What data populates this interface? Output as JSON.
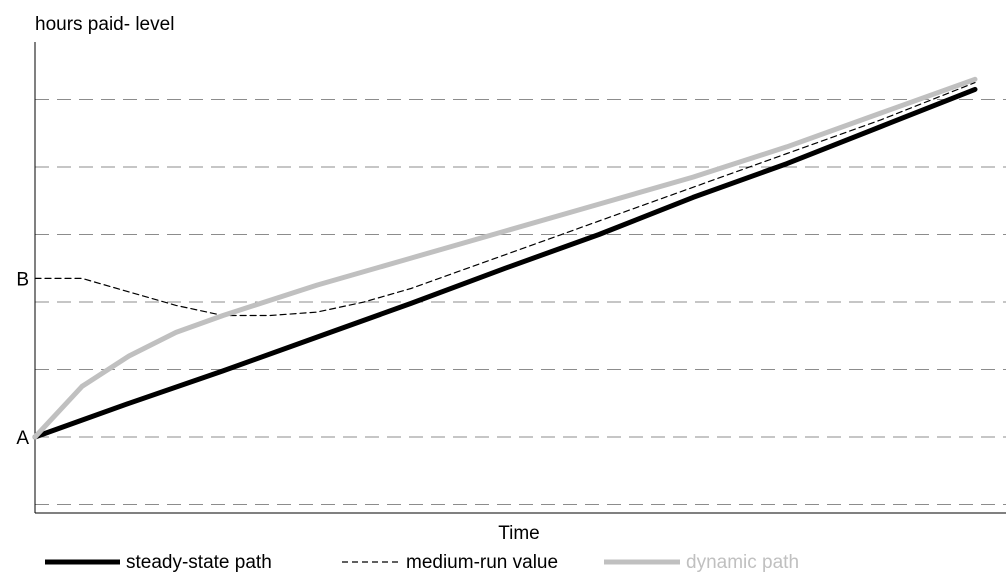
{
  "chart_data": {
    "type": "line",
    "title": "",
    "ylabel": "hours paid- level",
    "xlabel": "Time",
    "xlim": [
      0,
      100
    ],
    "ylim": [
      -1,
      6
    ],
    "grid": "horizontal dashed",
    "y_tick_labels": [
      {
        "label": "A",
        "value": 0
      },
      {
        "label": "B",
        "value": 2.35
      }
    ],
    "legend_position": "bottom",
    "series": [
      {
        "name": "steady-state path",
        "style": "solid-thick",
        "color": "#000000",
        "x": [
          0,
          5,
          10,
          20,
          30,
          40,
          50,
          60,
          70,
          80,
          90,
          100
        ],
        "y": [
          0,
          0.25,
          0.5,
          0.98,
          1.48,
          1.98,
          2.5,
          3.0,
          3.55,
          4.05,
          4.6,
          5.15
        ]
      },
      {
        "name": "medium-run value",
        "style": "dashed-thin",
        "color": "#000000",
        "x": [
          0,
          5,
          10,
          15,
          20,
          25,
          30,
          35,
          40,
          45,
          50,
          60,
          70,
          80,
          90,
          100
        ],
        "y": [
          2.35,
          2.35,
          2.15,
          1.95,
          1.8,
          1.8,
          1.85,
          2.0,
          2.2,
          2.45,
          2.7,
          3.2,
          3.7,
          4.2,
          4.7,
          5.25
        ]
      },
      {
        "name": "dynamic path",
        "style": "solid-thick",
        "color": "#c0c0c0",
        "x": [
          0,
          5,
          10,
          15,
          20,
          30,
          40,
          50,
          60,
          70,
          80,
          90,
          100
        ],
        "y": [
          0,
          0.75,
          1.2,
          1.55,
          1.8,
          2.25,
          2.65,
          3.05,
          3.45,
          3.85,
          4.3,
          4.8,
          5.3
        ]
      }
    ]
  }
}
